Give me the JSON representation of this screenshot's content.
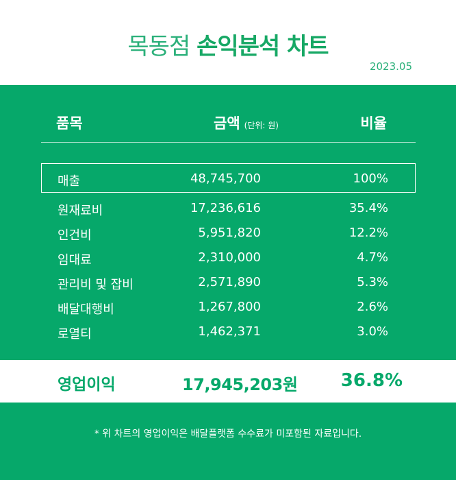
{
  "header": {
    "title_light": "목동점",
    "title_bold": "손익분석 차트",
    "date": "2023.05"
  },
  "columns": {
    "item": "품목",
    "amount": "금액",
    "amount_unit": "(단위: 원)",
    "ratio": "비율"
  },
  "rows": [
    {
      "item": "매출",
      "amount": "48,745,700",
      "ratio": "100%"
    },
    {
      "item": "원재료비",
      "amount": "17,236,616",
      "ratio": "35.4%"
    },
    {
      "item": "인건비",
      "amount": "5,951,820",
      "ratio": "12.2%"
    },
    {
      "item": "임대료",
      "amount": "2,310,000",
      "ratio": "4.7%"
    },
    {
      "item": "관리비 및 잡비",
      "amount": "2,571,890",
      "ratio": "5.3%"
    },
    {
      "item": "배달대행비",
      "amount": "1,267,800",
      "ratio": "2.6%"
    },
    {
      "item": "로열티",
      "amount": "1,462,371",
      "ratio": "3.0%"
    }
  ],
  "profit": {
    "label": "영업이익",
    "amount": "17,945,203원",
    "ratio": "36.8%"
  },
  "note": "* 위 차트의 영업이익은 배달플랫폼 수수료가 미포함된 자료입니다.",
  "colors": {
    "brand_green": "#06a86a",
    "title_green": "#2bb07a"
  }
}
